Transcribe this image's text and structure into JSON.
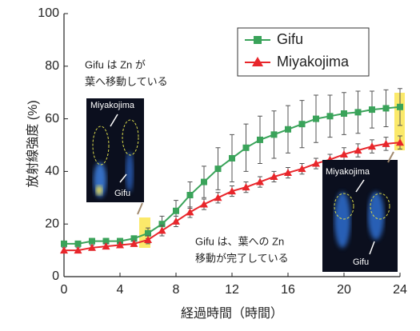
{
  "chart_data": {
    "type": "line",
    "x": [
      0,
      1,
      2,
      3,
      4,
      5,
      6,
      7,
      8,
      9,
      10,
      11,
      12,
      13,
      14,
      15,
      16,
      17,
      18,
      19,
      20,
      21,
      22,
      23,
      24
    ],
    "xlim": [
      0,
      24
    ],
    "xticks": [
      0,
      4,
      8,
      12,
      16,
      20,
      24
    ],
    "ylim": [
      0,
      100
    ],
    "yticks": [
      0,
      20,
      40,
      60,
      80,
      100
    ],
    "xlabel": "経過時間（時間）",
    "ylabel": "放射線強度 (%)",
    "series": [
      {
        "name": "Gifu",
        "color": "#3aa35a",
        "marker": "square",
        "values": [
          12.5,
          12.5,
          13.5,
          13.5,
          13.5,
          14.5,
          16.5,
          20,
          25,
          31,
          36,
          41,
          45,
          49,
          52,
          54,
          56,
          58,
          60,
          61,
          62,
          62.5,
          63.5,
          64,
          64.5
        ],
        "errors": [
          1,
          1,
          1,
          1,
          1,
          1,
          2,
          3,
          4,
          5,
          6,
          8,
          9,
          9,
          9,
          9,
          9,
          9,
          9,
          8,
          8,
          8,
          7,
          7,
          7
        ]
      },
      {
        "name": "Miyakojima",
        "color": "#e8262b",
        "marker": "triangle",
        "values": [
          10,
          10,
          11,
          11.5,
          12,
          12.5,
          14,
          17.5,
          21,
          24.5,
          27.5,
          30,
          32.5,
          34,
          36,
          38,
          39.5,
          41,
          43,
          44.5,
          46.5,
          48,
          49.5,
          50.5,
          51
        ],
        "errors": [
          1,
          1,
          1,
          1,
          1,
          1,
          1.5,
          2,
          2,
          2,
          2,
          2,
          2,
          2,
          2,
          2,
          2,
          2,
          2,
          2,
          2.5,
          2.5,
          2.5,
          2.5,
          2.5
        ]
      }
    ],
    "annotations": [
      {
        "lines": [
          "Gifu は Zn が",
          "葉へ移動している"
        ]
      },
      {
        "lines": [
          "Gifu は、葉への Zn",
          "移動が完了している"
        ]
      }
    ],
    "inset_labels": [
      "Miyakojima",
      "Gifu",
      "Miyakojima",
      "Gifu"
    ]
  }
}
